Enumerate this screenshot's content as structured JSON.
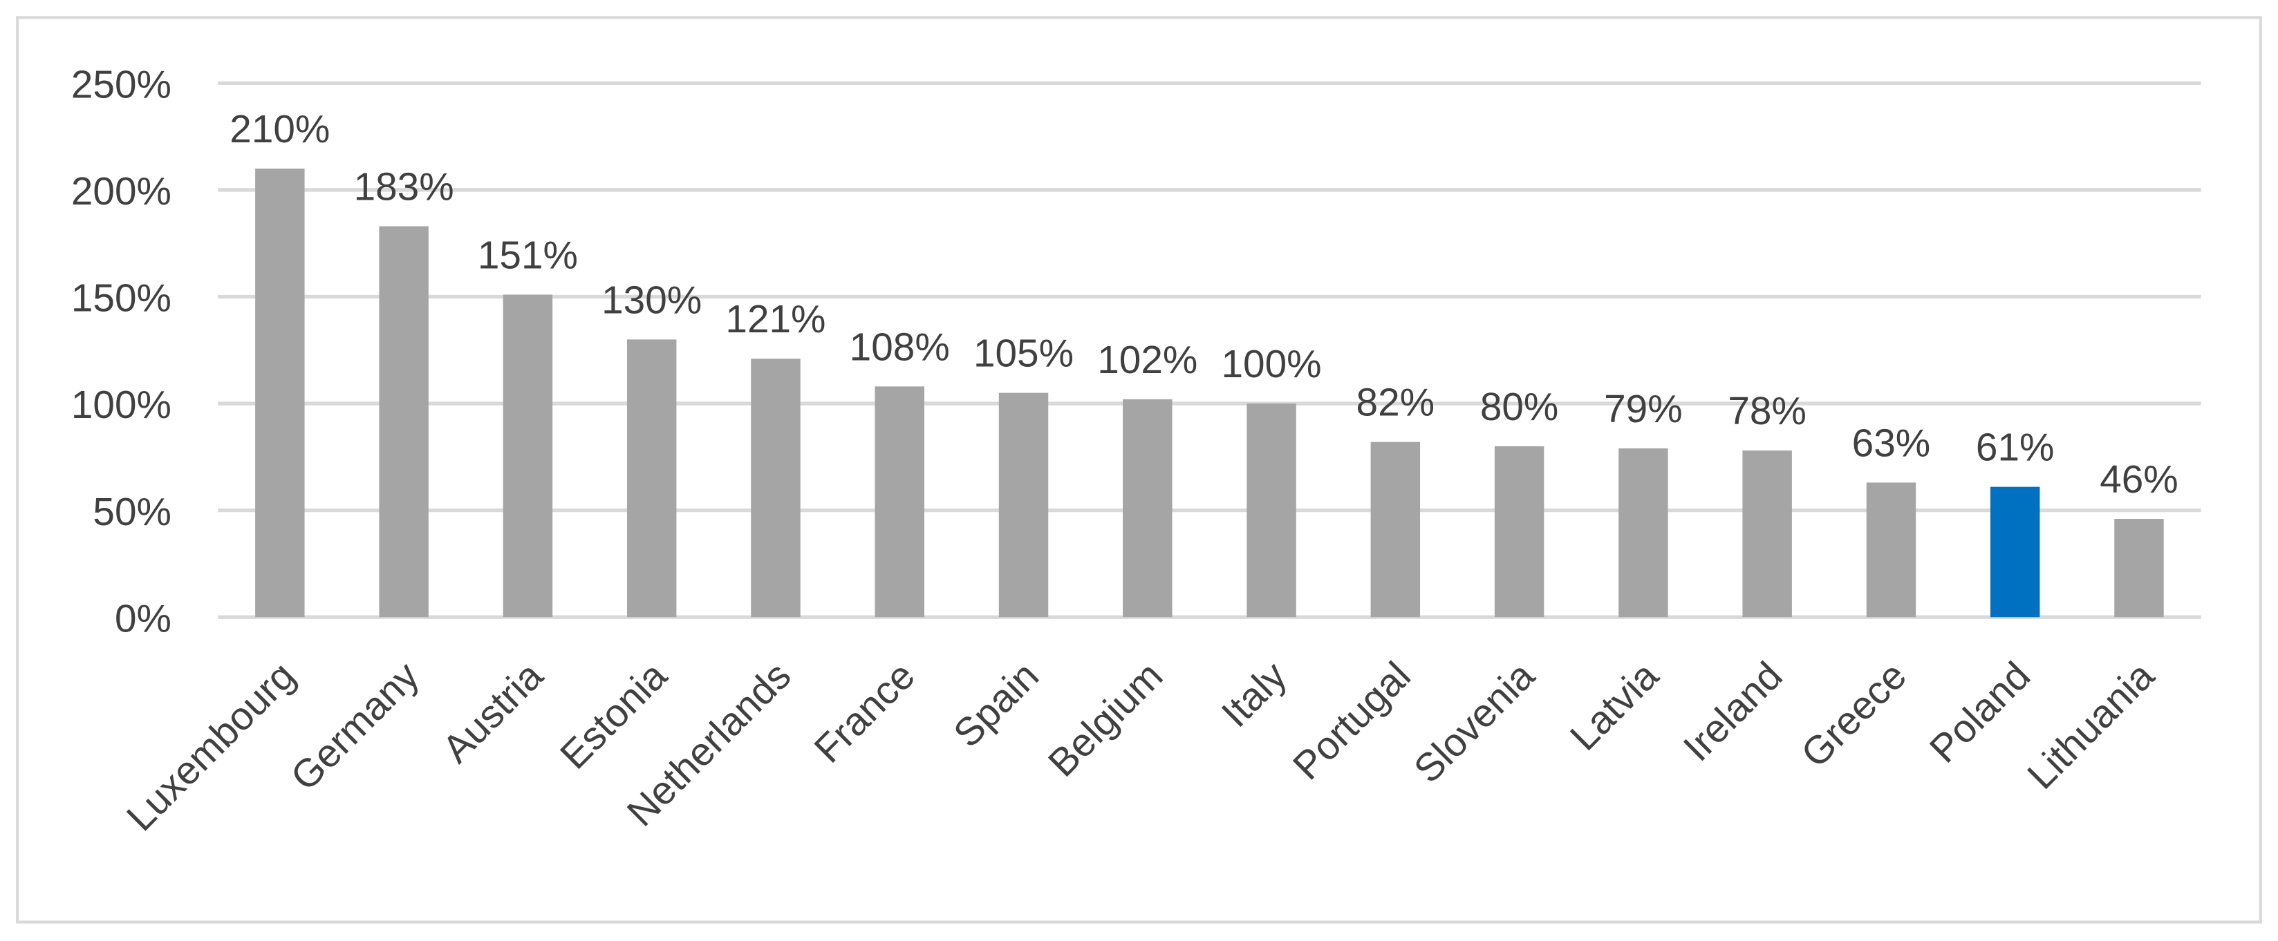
{
  "chart_data": {
    "type": "bar",
    "categories": [
      "Luxembourg",
      "Germany",
      "Austria",
      "Estonia",
      "Netherlands",
      "France",
      "Spain",
      "Belgium",
      "Italy",
      "Portugal",
      "Slovenia",
      "Latvia",
      "Ireland",
      "Greece",
      "Poland",
      "Lithuania"
    ],
    "values": [
      210,
      183,
      151,
      130,
      121,
      108,
      105,
      102,
      100,
      82,
      80,
      79,
      78,
      63,
      61,
      46
    ],
    "value_labels": [
      "210%",
      "183%",
      "151%",
      "130%",
      "121%",
      "108%",
      "105%",
      "102%",
      "100%",
      "82%",
      "80%",
      "79%",
      "78%",
      "63%",
      "61%",
      "46%"
    ],
    "colors": [
      "#a5a5a5",
      "#a5a5a5",
      "#a5a5a5",
      "#a5a5a5",
      "#a5a5a5",
      "#a5a5a5",
      "#a5a5a5",
      "#a5a5a5",
      "#a5a5a5",
      "#a5a5a5",
      "#a5a5a5",
      "#a5a5a5",
      "#a5a5a5",
      "#a5a5a5",
      "#0070c0",
      "#a5a5a5"
    ],
    "ylim": [
      0,
      250
    ],
    "yticks": [
      {
        "value": 0,
        "label": "0%"
      },
      {
        "value": 50,
        "label": "50%"
      },
      {
        "value": 100,
        "label": "100%"
      },
      {
        "value": 150,
        "label": "150%"
      },
      {
        "value": 200,
        "label": "200%"
      },
      {
        "value": 250,
        "label": "250%"
      }
    ],
    "grid": true
  }
}
